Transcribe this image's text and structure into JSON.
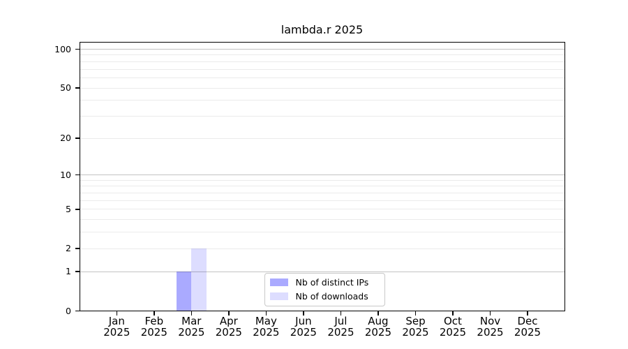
{
  "figure": {
    "title": "lambda.r 2025"
  },
  "chart_data": {
    "type": "bar",
    "title": "lambda.r 2025",
    "x_tick_months": [
      "Jan",
      "Feb",
      "Mar",
      "Apr",
      "May",
      "Jun",
      "Jul",
      "Aug",
      "Sep",
      "Oct",
      "Nov",
      "Dec"
    ],
    "x_tick_year": "2025",
    "y_scale": "log1p",
    "y_tick_labels": [
      "0",
      "1",
      "2",
      "5",
      "10",
      "20",
      "50",
      "100"
    ],
    "y_tick_values": [
      0,
      1,
      2,
      5,
      10,
      20,
      50,
      100
    ],
    "ylim": [
      0,
      114
    ],
    "grid": {
      "major_values": [
        1,
        10,
        100
      ],
      "minor_values": [
        2,
        3,
        4,
        5,
        6,
        7,
        8,
        9,
        20,
        30,
        40,
        50,
        60,
        70,
        80,
        90
      ],
      "major_color": "rgba(0,0,0,0.24)",
      "minor_color": "rgba(0,0,0,0.08)"
    },
    "series": [
      {
        "name": "Nb of distinct IPs",
        "color": "#aaaaff",
        "values": [
          0,
          0,
          1,
          0,
          0,
          0,
          0,
          0,
          0,
          0,
          0,
          0
        ]
      },
      {
        "name": "Nb of downloads",
        "color": "#ddddff",
        "values": [
          0,
          0,
          2,
          0,
          0,
          0,
          0,
          0,
          0,
          0,
          0,
          0
        ]
      }
    ],
    "legend_position": "lower center"
  }
}
